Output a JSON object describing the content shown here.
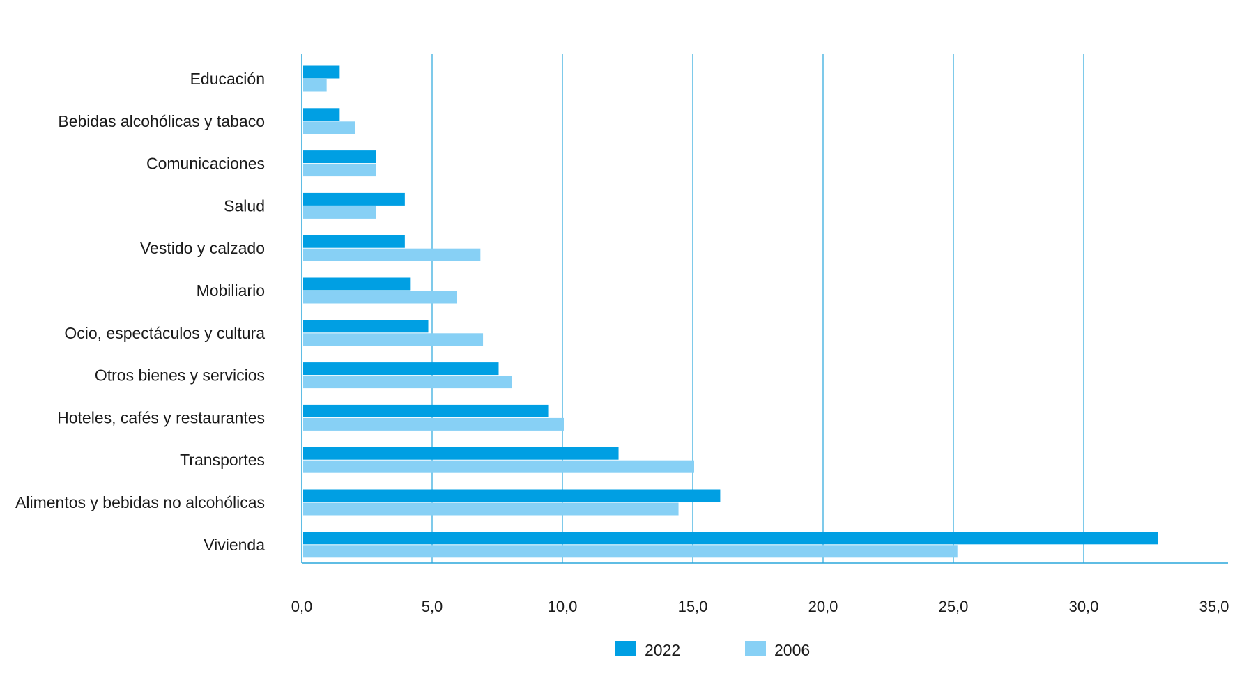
{
  "chart_data": {
    "type": "bar",
    "orientation": "horizontal",
    "title": "",
    "xlabel": "",
    "ylabel": "",
    "categories": [
      "Educación",
      "Bebidas alcohólicas y tabaco",
      "Comunicaciones",
      "Salud",
      "Vestido y calzado",
      "Mobiliario",
      "Ocio, espectáculos y cultura",
      "Otros bienes y servicios",
      "Hoteles, cafés y restaurantes",
      "Transportes",
      "Alimentos y bebidas no alcohólicas",
      "Vivienda"
    ],
    "series": [
      {
        "name": "2022",
        "color": "#009fe3",
        "values": [
          1.4,
          1.4,
          2.8,
          3.9,
          3.9,
          4.1,
          4.8,
          7.5,
          9.4,
          12.1,
          16.0,
          32.8
        ]
      },
      {
        "name": "2006",
        "color": "#87d0f5",
        "values": [
          0.9,
          2.0,
          2.8,
          2.8,
          6.8,
          5.9,
          6.9,
          8.0,
          10.0,
          15.0,
          14.4,
          25.1
        ]
      }
    ],
    "xlim": [
      0,
      35
    ],
    "xticks": [
      0,
      5,
      10,
      15,
      20,
      25,
      30,
      35
    ],
    "xtick_labels": [
      "0,0",
      "5,0",
      "10,0",
      "15,0",
      "20,0",
      "25,0",
      "30,0",
      "35,0"
    ],
    "grid": true,
    "legend_position": "bottom-center"
  }
}
